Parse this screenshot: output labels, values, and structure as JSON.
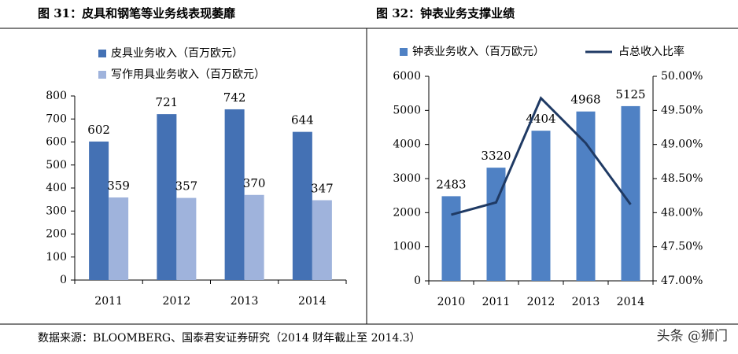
{
  "chart_data": [
    {
      "type": "bar",
      "title": "图 31：皮具和钢笔等业务线表现萎靡",
      "categories": [
        "2011",
        "2012",
        "2013",
        "2014"
      ],
      "series": [
        {
          "name": "皮具业务收入（百万欧元）",
          "color": "#4471b4",
          "values": [
            602,
            721,
            742,
            644
          ]
        },
        {
          "name": "写作用具业务收入（百万欧元）",
          "color": "#9fb3dc",
          "values": [
            359,
            357,
            370,
            347
          ]
        }
      ],
      "ylim": [
        0,
        800
      ],
      "yticks": [
        0,
        100,
        200,
        300,
        400,
        500,
        600,
        700,
        800
      ],
      "legend": "top-left"
    },
    {
      "type": "bar",
      "title": "图 32：钟表业务支撑业绩",
      "categories": [
        "2010",
        "2011",
        "2012",
        "2013",
        "2014"
      ],
      "series": [
        {
          "name": "钟表业务收入（百万欧元）",
          "color": "#4f81c4",
          "values": [
            2483,
            3320,
            4404,
            4968,
            5125
          ]
        },
        {
          "name": "占总收入比率",
          "type": "line",
          "axis": "y2",
          "color": "#1f3a64",
          "values": [
            47.97,
            48.15,
            49.68,
            49.02,
            48.12
          ]
        }
      ],
      "ylim": [
        0,
        6000
      ],
      "yticks": [
        0,
        1000,
        2000,
        3000,
        4000,
        5000,
        6000
      ],
      "y2lim": [
        47,
        50
      ],
      "y2ticks": [
        {
          "value": 47,
          "label": "47.00%"
        },
        {
          "value": 47.5,
          "label": "47.50%"
        },
        {
          "value": 48,
          "label": "48.00%"
        },
        {
          "value": 48.5,
          "label": "48.50%"
        },
        {
          "value": 49,
          "label": "49.00%"
        },
        {
          "value": 49.5,
          "label": "49.50%"
        },
        {
          "value": 50,
          "label": "50.00%"
        }
      ],
      "legend": "top"
    }
  ],
  "source": "数据来源：BLOOMBERG、国泰君安证券研究（2014 财年截止至 2014.3）",
  "watermark": "头条 @狮门"
}
